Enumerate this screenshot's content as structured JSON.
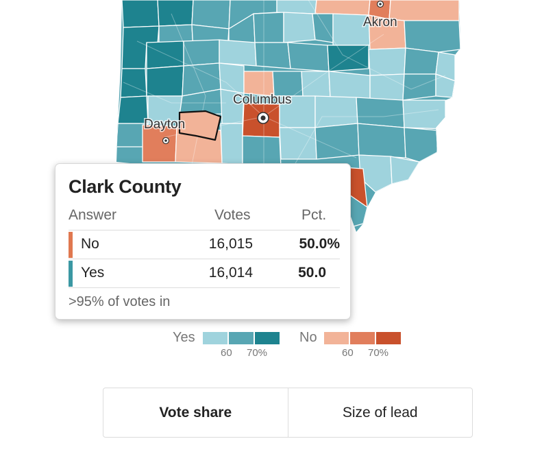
{
  "map": {
    "cities": {
      "akron": "Akron",
      "columbus": "Columbus",
      "dayton": "Dayton"
    },
    "colors": {
      "yes_light": "#9fd3dd",
      "yes_mid": "#58a6b3",
      "yes_dark": "#1e838f",
      "no_light": "#f2b398",
      "no_mid": "#e17e5c",
      "no_dark": "#c9512c"
    }
  },
  "tooltip": {
    "county": "Clark County",
    "headers": {
      "answer": "Answer",
      "votes": "Votes",
      "pct": "Pct."
    },
    "rows": [
      {
        "answer": "No",
        "votes": "16,015",
        "pct": "50.0%",
        "color": "#e07850"
      },
      {
        "answer": "Yes",
        "votes": "16,014",
        "pct": "50.0",
        "color": "#3b98a3"
      }
    ],
    "footer": ">95% of votes in"
  },
  "legend": {
    "yes_label": "Yes",
    "no_label": "No",
    "ticks": {
      "yes_60": "60",
      "yes_70": "70%",
      "no_60": "60",
      "no_70": "70%"
    }
  },
  "toggle": {
    "vote_share": "Vote share",
    "size_of_lead": "Size of lead"
  }
}
